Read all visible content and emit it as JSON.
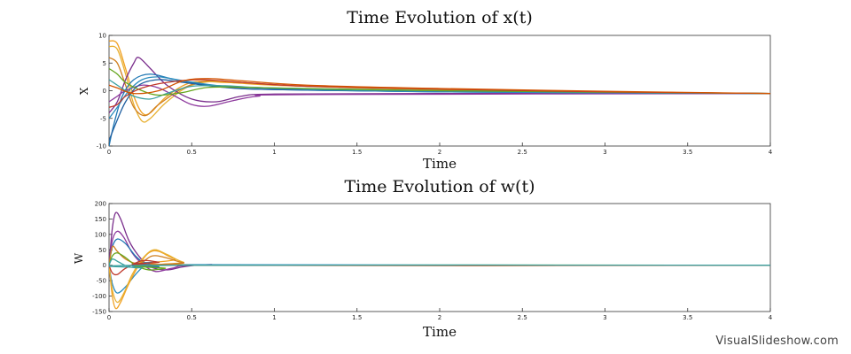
{
  "watermark": "VisualSlideshow.com",
  "chart_data": [
    {
      "type": "line",
      "title": "Time Evolution of x(t)",
      "xlabel": "Time",
      "ylabel": "X",
      "xlim": [
        0,
        4
      ],
      "ylim": [
        -10,
        10
      ],
      "xticks": [
        0,
        0.5,
        1,
        1.5,
        2,
        2.5,
        3,
        3.5,
        4
      ],
      "yticks": [
        -10,
        -5,
        0,
        5,
        10
      ],
      "grid": false,
      "series": [
        {
          "color": "#f0a020",
          "values": [
            [
              0,
              9
            ],
            [
              0.05,
              8.5
            ],
            [
              0.1,
              4
            ],
            [
              0.15,
              -1
            ],
            [
              0.2,
              -4
            ],
            [
              0.25,
              -4
            ],
            [
              0.35,
              -1
            ],
            [
              0.5,
              1.5
            ],
            [
              0.7,
              1.5
            ],
            [
              1,
              1
            ],
            [
              1.5,
              0.5
            ],
            [
              2,
              0.2
            ],
            [
              3,
              -0.3
            ],
            [
              4,
              -0.5
            ]
          ]
        },
        {
          "color": "#e8b030",
          "values": [
            [
              0,
              8
            ],
            [
              0.05,
              7.5
            ],
            [
              0.1,
              3
            ],
            [
              0.15,
              -2.5
            ],
            [
              0.2,
              -5.5
            ],
            [
              0.25,
              -5
            ],
            [
              0.35,
              -2
            ],
            [
              0.5,
              1
            ],
            [
              0.7,
              1.7
            ],
            [
              1,
              1
            ],
            [
              1.5,
              0.6
            ],
            [
              2,
              0.3
            ],
            [
              3,
              -0.2
            ],
            [
              4,
              -0.5
            ]
          ]
        },
        {
          "color": "#d08020",
          "values": [
            [
              0,
              6
            ],
            [
              0.05,
              5
            ],
            [
              0.1,
              1
            ],
            [
              0.15,
              -3
            ],
            [
              0.22,
              -4.5
            ],
            [
              0.3,
              -2.5
            ],
            [
              0.45,
              0.5
            ],
            [
              0.6,
              1.8
            ],
            [
              0.8,
              1.5
            ],
            [
              1.2,
              0.8
            ],
            [
              2,
              0.2
            ],
            [
              3,
              -0.3
            ],
            [
              4,
              -0.5
            ]
          ]
        },
        {
          "color": "#7a2e8c",
          "values": [
            [
              0,
              -4
            ],
            [
              0.05,
              -2
            ],
            [
              0.1,
              2
            ],
            [
              0.15,
              5
            ],
            [
              0.18,
              6
            ],
            [
              0.25,
              4
            ],
            [
              0.35,
              1
            ],
            [
              0.5,
              -1.5
            ],
            [
              0.65,
              -2
            ],
            [
              0.8,
              -1
            ],
            [
              1,
              -0.6
            ],
            [
              2,
              -0.5
            ],
            [
              4,
              -0.5
            ]
          ]
        },
        {
          "color": "#8e3a9e",
          "values": [
            [
              0,
              -2
            ],
            [
              0.05,
              -1
            ],
            [
              0.1,
              0
            ],
            [
              0.2,
              1
            ],
            [
              0.3,
              0.5
            ],
            [
              0.4,
              -1
            ],
            [
              0.5,
              -2.5
            ],
            [
              0.6,
              -2.8
            ],
            [
              0.75,
              -1.8
            ],
            [
              0.9,
              -1
            ],
            [
              1.2,
              -0.7
            ],
            [
              4,
              -0.5
            ]
          ]
        },
        {
          "color": "#1f77b4",
          "values": [
            [
              0,
              -10
            ],
            [
              0.03,
              -6
            ],
            [
              0.08,
              -1
            ],
            [
              0.15,
              2
            ],
            [
              0.25,
              3
            ],
            [
              0.4,
              2
            ],
            [
              0.6,
              1
            ],
            [
              0.8,
              0.4
            ],
            [
              1.2,
              0.1
            ],
            [
              2,
              -0.2
            ],
            [
              4,
              -0.5
            ]
          ]
        },
        {
          "color": "#1f5fa0",
          "values": [
            [
              0,
              -9
            ],
            [
              0.04,
              -6
            ],
            [
              0.1,
              -2
            ],
            [
              0.18,
              1
            ],
            [
              0.3,
              2
            ],
            [
              0.45,
              1.5
            ],
            [
              0.7,
              0.6
            ],
            [
              1,
              0.2
            ],
            [
              2,
              -0.2
            ],
            [
              4,
              -0.5
            ]
          ]
        },
        {
          "color": "#2b8cbe",
          "values": [
            [
              0,
              -5
            ],
            [
              0.05,
              -3
            ],
            [
              0.12,
              0
            ],
            [
              0.2,
              2
            ],
            [
              0.3,
              2.5
            ],
            [
              0.45,
              1.8
            ],
            [
              0.7,
              0.8
            ],
            [
              1.1,
              0.3
            ],
            [
              2,
              -0.2
            ],
            [
              4,
              -0.5
            ]
          ]
        },
        {
          "color": "#3aa0a0",
          "values": [
            [
              0,
              2
            ],
            [
              0.05,
              1
            ],
            [
              0.1,
              0
            ],
            [
              0.15,
              -1
            ],
            [
              0.25,
              -1.5
            ],
            [
              0.35,
              -0.5
            ],
            [
              0.5,
              0.8
            ],
            [
              0.7,
              0.9
            ],
            [
              1,
              0.5
            ],
            [
              2,
              0
            ],
            [
              4,
              -0.5
            ]
          ]
        },
        {
          "color": "#66a61e",
          "values": [
            [
              0,
              4
            ],
            [
              0.05,
              3
            ],
            [
              0.1,
              1.5
            ],
            [
              0.2,
              0
            ],
            [
              0.3,
              -0.8
            ],
            [
              0.45,
              -0.3
            ],
            [
              0.6,
              0.6
            ],
            [
              0.85,
              0.6
            ],
            [
              1.3,
              0.3
            ],
            [
              2,
              0
            ],
            [
              4,
              -0.5
            ]
          ]
        },
        {
          "color": "#c0392b",
          "values": [
            [
              0,
              -3
            ],
            [
              0.05,
              -2.5
            ],
            [
              0.1,
              -1
            ],
            [
              0.2,
              0.5
            ],
            [
              0.35,
              1.5
            ],
            [
              0.55,
              2
            ],
            [
              0.8,
              1.5
            ],
            [
              1.2,
              0.8
            ],
            [
              2,
              0.3
            ],
            [
              3,
              -0.2
            ],
            [
              4,
              -0.5
            ]
          ]
        },
        {
          "color": "#d35400",
          "values": [
            [
              0,
              1
            ],
            [
              0.05,
              0.5
            ],
            [
              0.15,
              -0.5
            ],
            [
              0.3,
              0
            ],
            [
              0.45,
              1.8
            ],
            [
              0.6,
              2.2
            ],
            [
              0.8,
              1.8
            ],
            [
              1.2,
              1
            ],
            [
              2,
              0.4
            ],
            [
              3,
              -0.1
            ],
            [
              4,
              -0.5
            ]
          ]
        }
      ]
    },
    {
      "type": "line",
      "title": "Time Evolution of w(t)",
      "xlabel": "Time",
      "ylabel": "W",
      "xlim": [
        0,
        4
      ],
      "ylim": [
        -150,
        200
      ],
      "xticks": [
        0,
        0.5,
        1,
        1.5,
        2,
        2.5,
        3,
        3.5,
        4
      ],
      "yticks": [
        -150,
        -100,
        -50,
        0,
        50,
        100,
        150,
        200
      ],
      "grid": false,
      "series": [
        {
          "color": "#7a2e8c",
          "values": [
            [
              0,
              0
            ],
            [
              0.02,
              120
            ],
            [
              0.04,
              170
            ],
            [
              0.07,
              150
            ],
            [
              0.12,
              80
            ],
            [
              0.18,
              30
            ],
            [
              0.25,
              -5
            ],
            [
              0.35,
              -15
            ],
            [
              0.45,
              -5
            ],
            [
              0.6,
              2
            ],
            [
              1,
              0
            ],
            [
              4,
              0
            ]
          ]
        },
        {
          "color": "#8e3a9e",
          "values": [
            [
              0,
              0
            ],
            [
              0.02,
              80
            ],
            [
              0.05,
              110
            ],
            [
              0.09,
              90
            ],
            [
              0.14,
              40
            ],
            [
              0.2,
              5
            ],
            [
              0.28,
              -20
            ],
            [
              0.38,
              -10
            ],
            [
              0.5,
              0
            ],
            [
              1,
              0
            ],
            [
              4,
              0
            ]
          ]
        },
        {
          "color": "#1f77b4",
          "values": [
            [
              0,
              0
            ],
            [
              0.02,
              60
            ],
            [
              0.05,
              85
            ],
            [
              0.1,
              70
            ],
            [
              0.16,
              30
            ],
            [
              0.22,
              5
            ],
            [
              0.3,
              -5
            ],
            [
              0.45,
              0
            ],
            [
              4,
              0
            ]
          ]
        },
        {
          "color": "#2b8cbe",
          "values": [
            [
              0,
              0
            ],
            [
              0.02,
              -60
            ],
            [
              0.05,
              -90
            ],
            [
              0.1,
              -70
            ],
            [
              0.16,
              -30
            ],
            [
              0.22,
              0
            ],
            [
              0.3,
              10
            ],
            [
              0.45,
              2
            ],
            [
              4,
              0
            ]
          ]
        },
        {
          "color": "#f0a020",
          "values": [
            [
              0,
              0
            ],
            [
              0.02,
              -100
            ],
            [
              0.04,
              -140
            ],
            [
              0.07,
              -120
            ],
            [
              0.12,
              -60
            ],
            [
              0.18,
              0
            ],
            [
              0.24,
              40
            ],
            [
              0.3,
              45
            ],
            [
              0.4,
              20
            ],
            [
              0.55,
              0
            ],
            [
              4,
              0
            ]
          ]
        },
        {
          "color": "#e8b030",
          "values": [
            [
              0,
              0
            ],
            [
              0.02,
              -80
            ],
            [
              0.05,
              -120
            ],
            [
              0.09,
              -90
            ],
            [
              0.14,
              -30
            ],
            [
              0.2,
              20
            ],
            [
              0.27,
              50
            ],
            [
              0.35,
              35
            ],
            [
              0.45,
              10
            ],
            [
              0.6,
              0
            ],
            [
              4,
              0
            ]
          ]
        },
        {
          "color": "#d08020",
          "values": [
            [
              0,
              0
            ],
            [
              0.02,
              60
            ],
            [
              0.05,
              45
            ],
            [
              0.1,
              20
            ],
            [
              0.18,
              5
            ],
            [
              0.26,
              30
            ],
            [
              0.34,
              25
            ],
            [
              0.45,
              8
            ],
            [
              0.6,
              0
            ],
            [
              4,
              0
            ]
          ]
        },
        {
          "color": "#66a61e",
          "values": [
            [
              0,
              0
            ],
            [
              0.02,
              30
            ],
            [
              0.05,
              40
            ],
            [
              0.1,
              25
            ],
            [
              0.16,
              0
            ],
            [
              0.24,
              -15
            ],
            [
              0.34,
              -10
            ],
            [
              0.45,
              0
            ],
            [
              4,
              0
            ]
          ]
        },
        {
          "color": "#c0392b",
          "values": [
            [
              0,
              0
            ],
            [
              0.02,
              -25
            ],
            [
              0.05,
              -30
            ],
            [
              0.1,
              -10
            ],
            [
              0.2,
              15
            ],
            [
              0.3,
              10
            ],
            [
              0.45,
              0
            ],
            [
              4,
              0
            ]
          ]
        },
        {
          "color": "#3aa0a0",
          "values": [
            [
              0,
              0
            ],
            [
              0.02,
              20
            ],
            [
              0.06,
              10
            ],
            [
              0.12,
              -5
            ],
            [
              0.2,
              -8
            ],
            [
              0.3,
              0
            ],
            [
              4,
              0
            ]
          ]
        }
      ]
    }
  ]
}
